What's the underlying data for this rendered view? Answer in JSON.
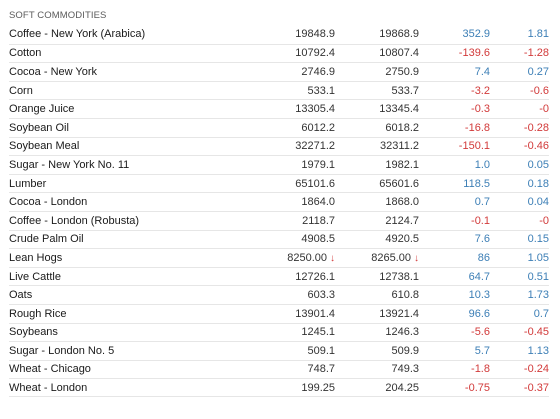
{
  "section_title": "SOFT COMMODITIES",
  "colors": {
    "positive": "#3d7fb6",
    "negative": "#d23a3a",
    "divider": "#e6e6e6"
  },
  "rows": [
    {
      "name": "Coffee - New York (Arabica)",
      "last": "19848.9",
      "prev": "19868.9",
      "change": "352.9",
      "pct": "1.81",
      "dir": "pos"
    },
    {
      "name": "Cotton",
      "last": "10792.4",
      "prev": "10807.4",
      "change": "-139.6",
      "pct": "-1.28",
      "dir": "neg"
    },
    {
      "name": "Cocoa - New York",
      "last": "2746.9",
      "prev": "2750.9",
      "change": "7.4",
      "pct": "0.27",
      "dir": "pos"
    },
    {
      "name": "Corn",
      "last": "533.1",
      "prev": "533.7",
      "change": "-3.2",
      "pct": "-0.6",
      "dir": "neg"
    },
    {
      "name": "Orange Juice",
      "last": "13305.4",
      "prev": "13345.4",
      "change": "-0.3",
      "pct": "-0",
      "dir": "neg"
    },
    {
      "name": "Soybean Oil",
      "last": "6012.2",
      "prev": "6018.2",
      "change": "-16.8",
      "pct": "-0.28",
      "dir": "neg"
    },
    {
      "name": "Soybean Meal",
      "last": "32271.2",
      "prev": "32311.2",
      "change": "-150.1",
      "pct": "-0.46",
      "dir": "neg"
    },
    {
      "name": "Sugar - New York No. 11",
      "last": "1979.1",
      "prev": "1982.1",
      "change": "1.0",
      "pct": "0.05",
      "dir": "pos"
    },
    {
      "name": "Lumber",
      "last": "65101.6",
      "prev": "65601.6",
      "change": "118.5",
      "pct": "0.18",
      "dir": "pos"
    },
    {
      "name": "Cocoa - London",
      "last": "1864.0",
      "prev": "1868.0",
      "change": "0.7",
      "pct": "0.04",
      "dir": "pos"
    },
    {
      "name": "Coffee - London (Robusta)",
      "last": "2118.7",
      "prev": "2124.7",
      "change": "-0.1",
      "pct": "-0",
      "dir": "neg"
    },
    {
      "name": "Crude Palm Oil",
      "last": "4908.5",
      "prev": "4920.5",
      "change": "7.6",
      "pct": "0.15",
      "dir": "pos"
    },
    {
      "name": "Lean Hogs",
      "last": "8250.00",
      "prev": "8265.00",
      "change": "86",
      "pct": "1.05",
      "dir": "pos",
      "down_arrows": true
    },
    {
      "name": "Live Cattle",
      "last": "12726.1",
      "prev": "12738.1",
      "change": "64.7",
      "pct": "0.51",
      "dir": "pos"
    },
    {
      "name": "Oats",
      "last": "603.3",
      "prev": "610.8",
      "change": "10.3",
      "pct": "1.73",
      "dir": "pos"
    },
    {
      "name": "Rough Rice",
      "last": "13901.4",
      "prev": "13921.4",
      "change": "96.6",
      "pct": "0.7",
      "dir": "pos"
    },
    {
      "name": "Soybeans",
      "last": "1245.1",
      "prev": "1246.3",
      "change": "-5.6",
      "pct": "-0.45",
      "dir": "neg"
    },
    {
      "name": "Sugar - London No. 5",
      "last": "509.1",
      "prev": "509.9",
      "change": "5.7",
      "pct": "1.13",
      "dir": "pos"
    },
    {
      "name": "Wheat - Chicago",
      "last": "748.7",
      "prev": "749.3",
      "change": "-1.8",
      "pct": "-0.24",
      "dir": "neg"
    },
    {
      "name": "Wheat - London",
      "last": "199.25",
      "prev": "204.25",
      "change": "-0.75",
      "pct": "-0.37",
      "dir": "neg"
    }
  ],
  "arrow_glyph": "↓"
}
